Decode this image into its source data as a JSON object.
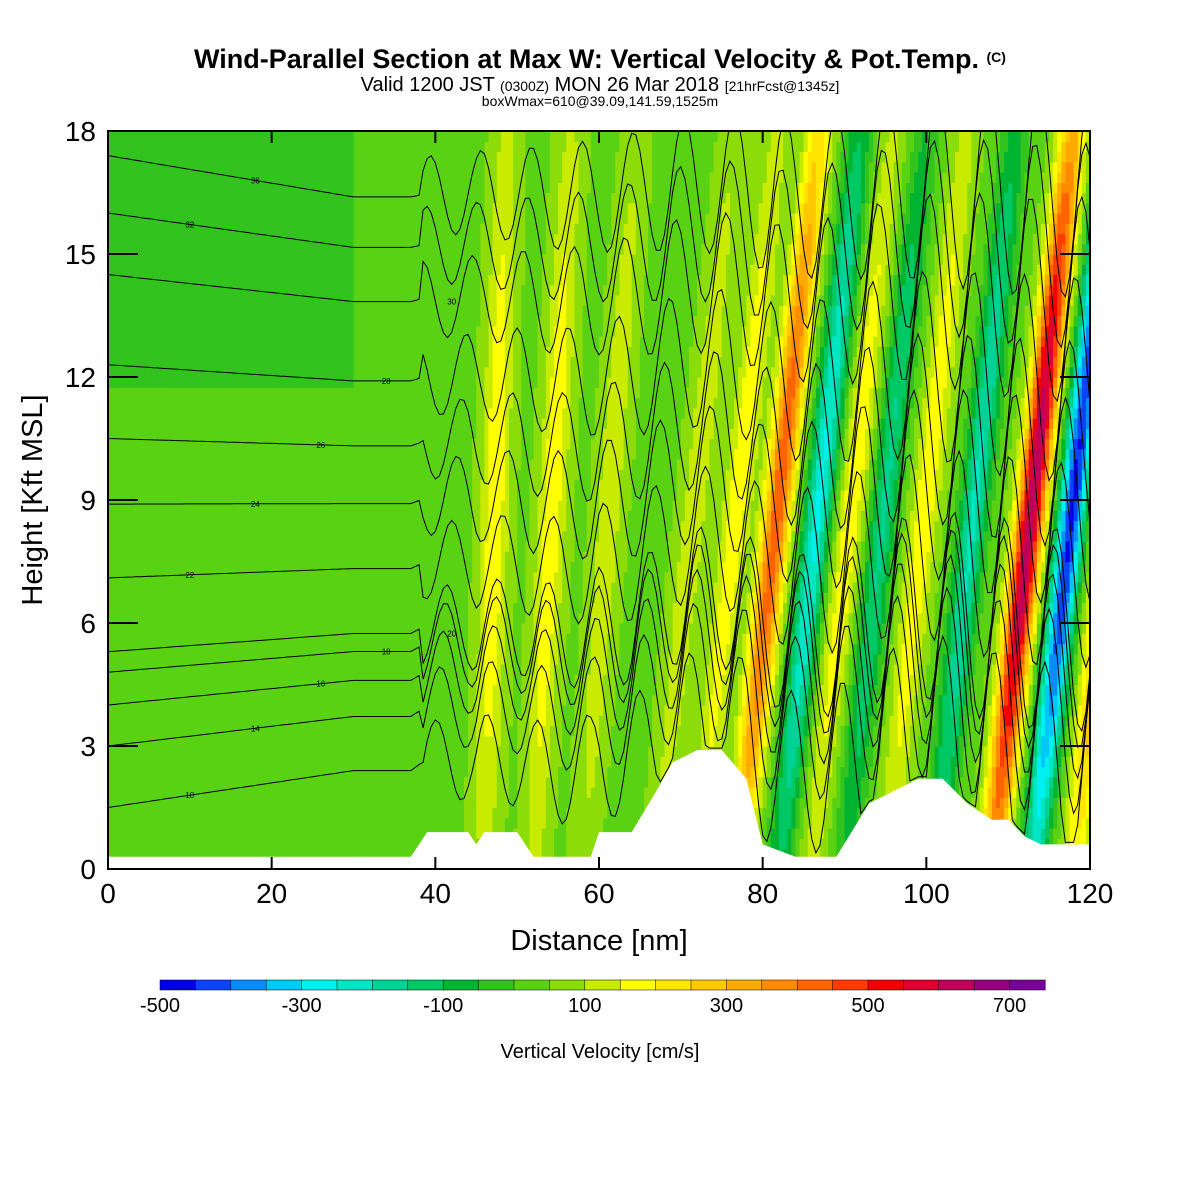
{
  "header": {
    "title_main": "Wind-Parallel Section at Max W: Vertical Velocity & Pot.Temp.",
    "title_mark": "(C)",
    "valid_a": "Valid 1200 JST",
    "valid_b": "(0300Z)",
    "valid_c": "MON 26 Mar 2018",
    "valid_d": "[21hrFcst@1345z]",
    "subtitle": "boxWmax=610@39.09,141.59,1525m"
  },
  "chart_data": {
    "type": "heatmap",
    "xlabel": "Distance [nm]",
    "ylabel": "Height [Kft MSL]",
    "xlim": [
      0,
      120
    ],
    "ylim": [
      0,
      18
    ],
    "xticks": [
      0,
      20,
      40,
      60,
      80,
      100,
      120
    ],
    "yticks": [
      0,
      3,
      6,
      9,
      12,
      15,
      18
    ],
    "colorbar": {
      "label": "Vertical Velocity [cm/s]",
      "ticks": [
        "-500",
        "-300",
        "-100",
        "100",
        "300",
        "500",
        "700"
      ],
      "levels": [
        -500,
        750
      ],
      "colors": [
        "#0000e6",
        "#0a44f5",
        "#0a8cf5",
        "#00c8fa",
        "#00f0f0",
        "#00e6c3",
        "#00d296",
        "#00c864",
        "#00b432",
        "#32c31e",
        "#5ad214",
        "#8cdc0a",
        "#c8eb00",
        "#ffff00",
        "#ffe600",
        "#ffc800",
        "#ffaa00",
        "#ff8c00",
        "#ff6400",
        "#ff3c00",
        "#f50000",
        "#dc0032",
        "#be005a",
        "#96007d",
        "#780096"
      ]
    },
    "vertical_velocity_bands": [
      {
        "x": 46,
        "peak_cm_s": 150
      },
      {
        "x": 52,
        "peak_cm_s": 150
      },
      {
        "x": 58,
        "peak_cm_s": 100
      },
      {
        "x": 67,
        "peak_cm_s": 100
      },
      {
        "x": 72,
        "peak_cm_s": 150
      },
      {
        "x": 77,
        "peak_cm_s": 400
      },
      {
        "x": 82,
        "peak_cm_s": -300
      },
      {
        "x": 86,
        "peak_cm_s": 150
      },
      {
        "x": 90,
        "peak_cm_s": -200
      },
      {
        "x": 95,
        "peak_cm_s": 150
      },
      {
        "x": 101,
        "peak_cm_s": -250
      },
      {
        "x": 108,
        "peak_cm_s": 610
      },
      {
        "x": 113,
        "peak_cm_s": -500
      },
      {
        "x": 118,
        "peak_cm_s": 300
      }
    ],
    "terrain": [
      {
        "x": 0,
        "h": 0.3
      },
      {
        "x": 37,
        "h": 0.3
      },
      {
        "x": 39,
        "h": 0.9
      },
      {
        "x": 44,
        "h": 0.9
      },
      {
        "x": 45,
        "h": 0.6
      },
      {
        "x": 46,
        "h": 0.9
      },
      {
        "x": 50,
        "h": 0.9
      },
      {
        "x": 52,
        "h": 0.3
      },
      {
        "x": 59,
        "h": 0.3
      },
      {
        "x": 60,
        "h": 0.9
      },
      {
        "x": 64,
        "h": 0.9
      },
      {
        "x": 67,
        "h": 1.9
      },
      {
        "x": 69,
        "h": 2.6
      },
      {
        "x": 72,
        "h": 2.9
      },
      {
        "x": 75,
        "h": 2.9
      },
      {
        "x": 78,
        "h": 2.2
      },
      {
        "x": 80,
        "h": 0.6
      },
      {
        "x": 84,
        "h": 0.3
      },
      {
        "x": 89,
        "h": 0.3
      },
      {
        "x": 93,
        "h": 1.6
      },
      {
        "x": 96,
        "h": 1.9
      },
      {
        "x": 99,
        "h": 2.2
      },
      {
        "x": 102,
        "h": 2.2
      },
      {
        "x": 105,
        "h": 1.6
      },
      {
        "x": 108,
        "h": 1.2
      },
      {
        "x": 110,
        "h": 1.2
      },
      {
        "x": 112,
        "h": 0.8
      },
      {
        "x": 114,
        "h": 0.6
      },
      {
        "x": 120,
        "h": 0.6
      }
    ],
    "isentropes": [
      {
        "label": "10",
        "y0": 1.5
      },
      {
        "label": "14",
        "y0": 3.0
      },
      {
        "label": "16",
        "y0": 4.0
      },
      {
        "label": "18",
        "y0": 4.8
      },
      {
        "label": "20",
        "y0": 5.3
      },
      {
        "label": "22",
        "y0": 7.1
      },
      {
        "label": "24",
        "y0": 8.9
      },
      {
        "label": "26",
        "y0": 10.5
      },
      {
        "label": "28",
        "y0": 12.3
      },
      {
        "label": "30",
        "y0": 14.5
      },
      {
        "label": "32",
        "y0": 16.0
      },
      {
        "label": "36",
        "y0": 17.4
      }
    ]
  }
}
